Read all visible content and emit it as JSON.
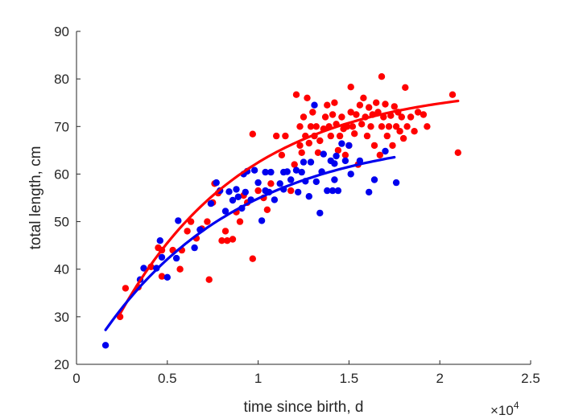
{
  "chart_data": {
    "type": "scatter",
    "xlabel": "time since birth, d",
    "ylabel": "total length, cm",
    "x_exponent_label": "×10",
    "x_exponent_power": "4",
    "xlim": [
      0,
      25000
    ],
    "ylim": [
      20,
      90
    ],
    "x_ticks": [
      0,
      5000,
      10000,
      15000,
      20000,
      25000
    ],
    "x_tick_labels": [
      "0",
      "0.5",
      "1",
      "1.5",
      "2",
      "2.5"
    ],
    "y_ticks": [
      20,
      30,
      40,
      50,
      60,
      70,
      80,
      90
    ],
    "y_tick_labels": [
      "20",
      "30",
      "40",
      "50",
      "60",
      "70",
      "80",
      "90"
    ],
    "grid": false,
    "colors": {
      "red": "#ff0000",
      "blue": "#0000ee",
      "axis": "#262626"
    },
    "series": [
      {
        "color": "#ff0000",
        "marker": "filled-circle",
        "points": [
          [
            2400,
            30
          ],
          [
            2700,
            36
          ],
          [
            3400,
            36.2
          ],
          [
            4100,
            40.5
          ],
          [
            4500,
            44.5
          ],
          [
            4700,
            44
          ],
          [
            4700,
            38.5
          ],
          [
            5300,
            44
          ],
          [
            5700,
            40
          ],
          [
            5800,
            44
          ],
          [
            6100,
            48
          ],
          [
            6300,
            50
          ],
          [
            6600,
            46.5
          ],
          [
            6900,
            48.5
          ],
          [
            7200,
            50
          ],
          [
            7300,
            37.8
          ],
          [
            7500,
            54
          ],
          [
            7600,
            58
          ],
          [
            7800,
            56
          ],
          [
            8000,
            46
          ],
          [
            8200,
            48
          ],
          [
            8300,
            46
          ],
          [
            8600,
            46.3
          ],
          [
            8800,
            52
          ],
          [
            9000,
            50
          ],
          [
            9200,
            55.5
          ],
          [
            9400,
            54
          ],
          [
            9700,
            68.4
          ],
          [
            9700,
            42.2
          ],
          [
            10000,
            56.5
          ],
          [
            10300,
            55
          ],
          [
            10500,
            52.5
          ],
          [
            10700,
            58
          ],
          [
            11000,
            68
          ],
          [
            11300,
            64
          ],
          [
            11500,
            68
          ],
          [
            11800,
            56.5
          ],
          [
            12000,
            62
          ],
          [
            12100,
            76.7
          ],
          [
            12300,
            66
          ],
          [
            12300,
            70
          ],
          [
            12400,
            64.5
          ],
          [
            12500,
            72
          ],
          [
            12600,
            68
          ],
          [
            12700,
            76
          ],
          [
            12800,
            66.5
          ],
          [
            12900,
            70
          ],
          [
            13000,
            73
          ],
          [
            13100,
            68
          ],
          [
            13200,
            70
          ],
          [
            13300,
            64.5
          ],
          [
            13400,
            67
          ],
          [
            13600,
            69.5
          ],
          [
            13700,
            72
          ],
          [
            13800,
            74.5
          ],
          [
            13900,
            70
          ],
          [
            14000,
            68
          ],
          [
            14100,
            72.5
          ],
          [
            14200,
            75
          ],
          [
            14300,
            70.5
          ],
          [
            14400,
            65
          ],
          [
            14500,
            68
          ],
          [
            14600,
            72
          ],
          [
            14700,
            69.5
          ],
          [
            14800,
            64
          ],
          [
            14900,
            70
          ],
          [
            15000,
            66
          ],
          [
            15100,
            73
          ],
          [
            15100,
            78.3
          ],
          [
            15200,
            70
          ],
          [
            15300,
            68.5
          ],
          [
            15400,
            72.5
          ],
          [
            15500,
            62
          ],
          [
            15600,
            74.5
          ],
          [
            15700,
            70.5
          ],
          [
            15800,
            76
          ],
          [
            15900,
            72
          ],
          [
            16000,
            68
          ],
          [
            16100,
            74
          ],
          [
            16200,
            70
          ],
          [
            16300,
            72.5
          ],
          [
            16400,
            66
          ],
          [
            16500,
            75
          ],
          [
            16600,
            73
          ],
          [
            16700,
            64
          ],
          [
            16800,
            70
          ],
          [
            16800,
            80.5
          ],
          [
            16900,
            72
          ],
          [
            17000,
            74.7
          ],
          [
            17100,
            68
          ],
          [
            17200,
            70
          ],
          [
            17300,
            72.3
          ],
          [
            17400,
            66
          ],
          [
            17500,
            74.2
          ],
          [
            17600,
            70
          ],
          [
            17700,
            73
          ],
          [
            17800,
            69
          ],
          [
            17900,
            72
          ],
          [
            18000,
            67.5
          ],
          [
            18100,
            78.2
          ],
          [
            18200,
            70
          ],
          [
            18400,
            72
          ],
          [
            18600,
            69
          ],
          [
            18800,
            73
          ],
          [
            19100,
            72.5
          ],
          [
            19300,
            70
          ],
          [
            20700,
            76.7
          ],
          [
            21000,
            64.5
          ]
        ]
      },
      {
        "color": "#0000ee",
        "marker": "filled-circle",
        "points": [
          [
            1600,
            24
          ],
          [
            3500,
            37.8
          ],
          [
            3700,
            40.2
          ],
          [
            4400,
            40.2
          ],
          [
            4600,
            46
          ],
          [
            4700,
            42.5
          ],
          [
            5000,
            38.3
          ],
          [
            5500,
            42.3
          ],
          [
            5600,
            50.2
          ],
          [
            6500,
            44.5
          ],
          [
            6800,
            48.3
          ],
          [
            7400,
            53.8
          ],
          [
            7700,
            58.2
          ],
          [
            7900,
            56.5
          ],
          [
            8200,
            52.2
          ],
          [
            8400,
            56.3
          ],
          [
            8600,
            54.5
          ],
          [
            8800,
            56.8
          ],
          [
            8900,
            55.2
          ],
          [
            9100,
            52.8
          ],
          [
            9200,
            60
          ],
          [
            9300,
            56.2
          ],
          [
            9400,
            60.6
          ],
          [
            9600,
            54.6
          ],
          [
            9800,
            60.8
          ],
          [
            10000,
            58.2
          ],
          [
            10200,
            50.2
          ],
          [
            10400,
            56.5
          ],
          [
            10400,
            60.4
          ],
          [
            10600,
            56.2
          ],
          [
            10700,
            60.4
          ],
          [
            10900,
            54.6
          ],
          [
            11200,
            58
          ],
          [
            11400,
            60.4
          ],
          [
            11400,
            56.8
          ],
          [
            11600,
            60.5
          ],
          [
            11800,
            58.8
          ],
          [
            12100,
            60.8
          ],
          [
            12200,
            56.2
          ],
          [
            12400,
            60.4
          ],
          [
            12500,
            62.5
          ],
          [
            12600,
            58.5
          ],
          [
            12800,
            55.3
          ],
          [
            12900,
            62.5
          ],
          [
            13100,
            74.5
          ],
          [
            13200,
            58.4
          ],
          [
            13400,
            51.8
          ],
          [
            13500,
            60.5
          ],
          [
            13600,
            64.2
          ],
          [
            13800,
            56.5
          ],
          [
            14000,
            62.8
          ],
          [
            14100,
            56.5
          ],
          [
            14200,
            58.8
          ],
          [
            14200,
            62.2
          ],
          [
            14300,
            63.8
          ],
          [
            14400,
            56.5
          ],
          [
            14600,
            66.4
          ],
          [
            14800,
            62.8
          ],
          [
            15000,
            66
          ],
          [
            15100,
            60
          ],
          [
            15600,
            62.8
          ],
          [
            16100,
            56.2
          ],
          [
            16400,
            58.8
          ],
          [
            17000,
            64.8
          ],
          [
            17600,
            58.2
          ]
        ]
      }
    ],
    "fit_lines": [
      {
        "color": "#ff0000",
        "type": "von-bertalanffy",
        "Linf": 78.8,
        "K": 0.000142,
        "t0": -1068,
        "x_range": [
          2400,
          21000
        ]
      },
      {
        "color": "#0000ee",
        "type": "von-bertalanffy",
        "Linf": 68.8,
        "K": 0.00013,
        "t0": -2276,
        "x_range": [
          1600,
          17500
        ]
      }
    ]
  }
}
